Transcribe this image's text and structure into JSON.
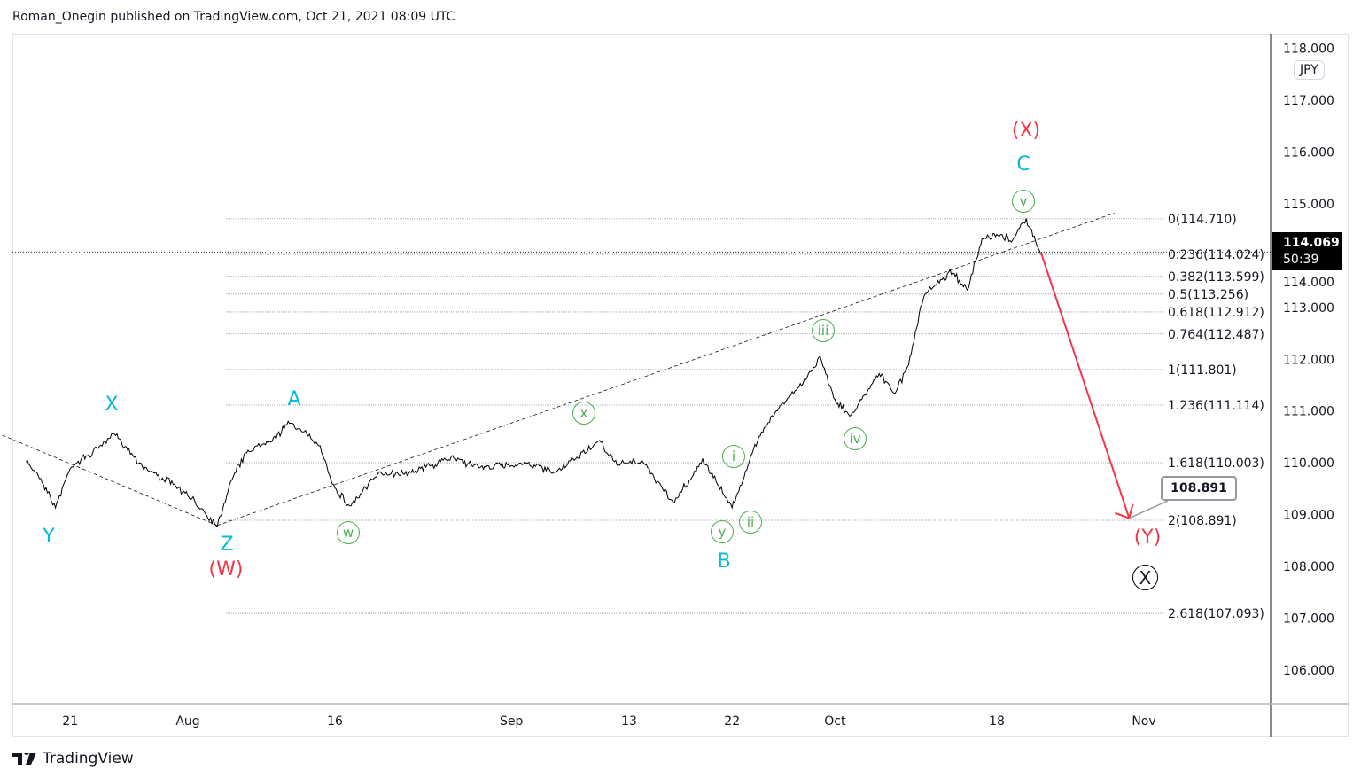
{
  "header": {
    "publisher": "Roman_Onegin published on TradingView.com, Oct 21, 2021 08:09 UTC"
  },
  "footer": {
    "brand": "TradingView"
  },
  "currency": "JPY",
  "last_price": {
    "price": "114.069",
    "countdown": "50:39"
  },
  "target_label": "108.891",
  "colors": {
    "wave_cyan": "#00bcd4",
    "wave_red": "#f23645",
    "subwave_green": "#4caf50",
    "arrow": "#f23645",
    "price": "#000000"
  },
  "chart_data": {
    "type": "line",
    "x_ticks": [
      {
        "date": "2021-07-21",
        "label": "21"
      },
      {
        "date": "2021-08-02",
        "label": "Aug"
      },
      {
        "date": "2021-08-16",
        "label": "16"
      },
      {
        "date": "2021-09-01",
        "label": "Sep"
      },
      {
        "date": "2021-09-13",
        "label": "13"
      },
      {
        "date": "2021-09-22",
        "label": "22"
      },
      {
        "date": "2021-10-01",
        "label": "Oct"
      },
      {
        "date": "2021-10-18",
        "label": "18"
      },
      {
        "date": "2021-11-01",
        "label": "Nov"
      }
    ],
    "y_ticks": [
      "118.000",
      "117.000",
      "116.000",
      "115.000",
      "114.000",
      "113.000",
      "112.000",
      "111.000",
      "110.000",
      "109.000",
      "108.000",
      "107.000",
      "106.000"
    ],
    "ylim": [
      105.7,
      118.3
    ],
    "price_path": [
      [
        "2021-07-16",
        110.05
      ],
      [
        "2021-07-19",
        109.7
      ],
      [
        "2021-07-20",
        109.13
      ],
      [
        "2021-07-21",
        109.9
      ],
      [
        "2021-07-23",
        110.3
      ],
      [
        "2021-07-26",
        110.58
      ],
      [
        "2021-07-28",
        109.9
      ],
      [
        "2021-07-30",
        109.6
      ],
      [
        "2021-08-03",
        109.1
      ],
      [
        "2021-08-04",
        108.79
      ],
      [
        "2021-08-05",
        109.7
      ],
      [
        "2021-08-06",
        110.2
      ],
      [
        "2021-08-10",
        110.5
      ],
      [
        "2021-08-11",
        110.79
      ],
      [
        "2021-08-13",
        110.3
      ],
      [
        "2021-08-16",
        109.5
      ],
      [
        "2021-08-17",
        109.16
      ],
      [
        "2021-08-19",
        109.8
      ],
      [
        "2021-08-23",
        109.8
      ],
      [
        "2021-08-26",
        110.1
      ],
      [
        "2021-08-30",
        109.9
      ],
      [
        "2021-09-02",
        110.0
      ],
      [
        "2021-09-06",
        109.8
      ],
      [
        "2021-09-09",
        110.43
      ],
      [
        "2021-09-10",
        110.0
      ],
      [
        "2021-09-14",
        110.0
      ],
      [
        "2021-09-16",
        109.22
      ],
      [
        "2021-09-20",
        110.05
      ],
      [
        "2021-09-22",
        109.15
      ],
      [
        "2021-09-23",
        109.9
      ],
      [
        "2021-09-24",
        110.6
      ],
      [
        "2021-09-27",
        111.0
      ],
      [
        "2021-09-29",
        111.6
      ],
      [
        "2021-09-30",
        112.06
      ],
      [
        "2021-10-01",
        111.2
      ],
      [
        "2021-10-04",
        110.89
      ],
      [
        "2021-10-05",
        111.3
      ],
      [
        "2021-10-06",
        111.75
      ],
      [
        "2021-10-07",
        111.32
      ],
      [
        "2021-10-08",
        111.9
      ],
      [
        "2021-10-11",
        113.2
      ],
      [
        "2021-10-12",
        113.5
      ],
      [
        "2021-10-13",
        113.7
      ],
      [
        "2021-10-14",
        113.32
      ],
      [
        "2021-10-15",
        114.3
      ],
      [
        "2021-10-18",
        114.4
      ],
      [
        "2021-10-19",
        114.3
      ],
      [
        "2021-10-20",
        114.69
      ],
      [
        "2021-10-21",
        114.02
      ]
    ],
    "fib_levels": [
      {
        "label": "0(114.710)",
        "price": 114.71
      },
      {
        "label": "0.236(114.024)",
        "price": 114.024
      },
      {
        "label": "0.382(113.599)",
        "price": 113.599
      },
      {
        "label": "0.5(113.256)",
        "price": 113.256
      },
      {
        "label": "0.618(112.912)",
        "price": 112.912
      },
      {
        "label": "0.764(112.487)",
        "price": 112.487
      },
      {
        "label": "1(111.801)",
        "price": 111.801
      },
      {
        "label": "1.236(111.114)",
        "price": 111.114
      },
      {
        "label": "1.618(110.003)",
        "price": 110.003
      },
      {
        "label": "2(108.891)",
        "price": 108.891
      },
      {
        "label": "2.618(107.093)",
        "price": 107.093
      }
    ],
    "trendlines": [
      {
        "from": [
          "2021-07-14",
          110.58
        ],
        "to": [
          "2021-08-04",
          108.79
        ]
      },
      {
        "from": [
          "2021-08-04",
          108.79
        ],
        "to": [
          "2021-10-28",
          114.82
        ]
      }
    ],
    "projection_arrow": {
      "from": [
        "2021-10-21",
        114.06
      ],
      "to": [
        "2021-10-29",
        108.93
      ]
    },
    "wave_labels": {
      "Y": "Y",
      "X": "X",
      "Z": "Z",
      "W": "(W)",
      "A": "A",
      "B": "B",
      "C": "C",
      "XX": "(X)",
      "YY": "(Y)",
      "circleX": "X"
    },
    "subwave_labels": {
      "w": "w",
      "x": "x",
      "y": "y",
      "i": "i",
      "ii": "ii",
      "iii": "iii",
      "iv": "iv",
      "v": "v"
    }
  }
}
